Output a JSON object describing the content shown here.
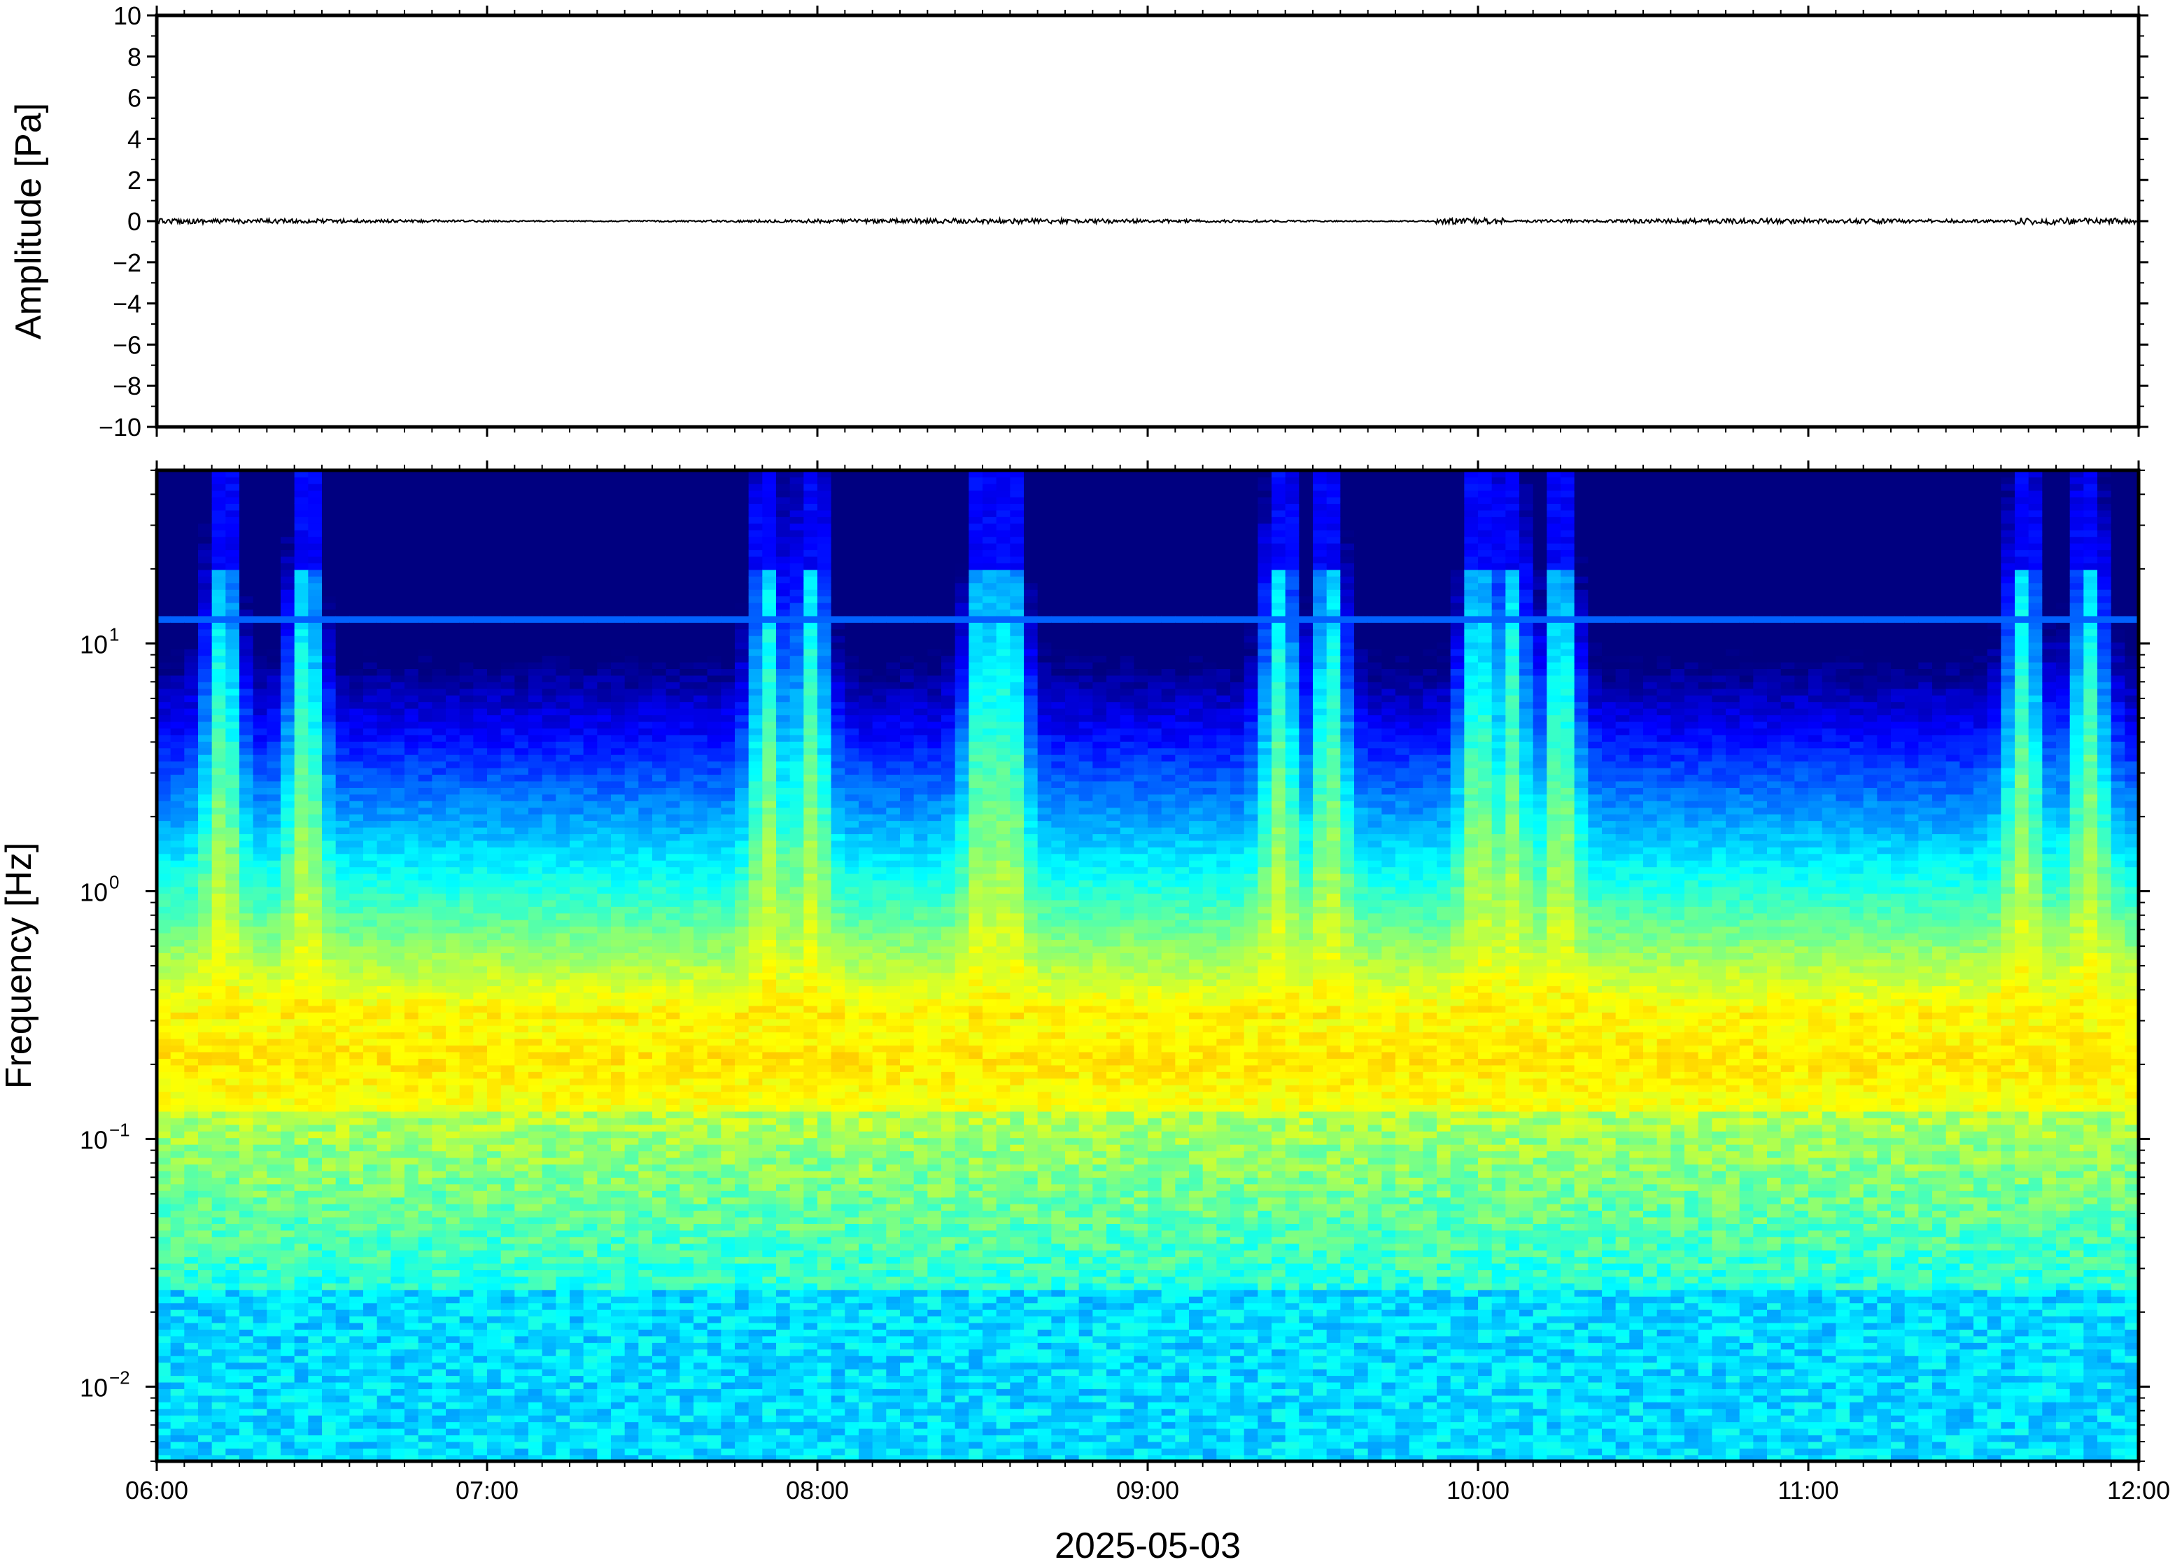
{
  "chart_data": [
    {
      "type": "line",
      "panel": "waveform",
      "ylabel": "Amplitude [Pa]",
      "ylim": [
        -10,
        10
      ],
      "yticks": [
        10,
        8,
        6,
        4,
        2,
        0,
        -2,
        -4,
        -6,
        -8,
        -10
      ],
      "ytick_labels": [
        "10",
        "8",
        "6",
        "4",
        "2",
        "0",
        "−2",
        "−4",
        "−6",
        "−8",
        "−10"
      ],
      "x_range": [
        "06:00",
        "12:00"
      ],
      "series": [
        {
          "baseline": 0,
          "peak_amplitude": 0.3,
          "color": "#000000"
        }
      ],
      "grid": false
    },
    {
      "type": "heatmap",
      "panel": "spectrogram",
      "ylabel": "Frequency [Hz]",
      "yscale": "log",
      "ylim": [
        0.005,
        50
      ],
      "yticks": [
        0.01,
        0.1,
        1,
        10
      ],
      "ytick_labels": [
        {
          "base": "10",
          "exp": "−2"
        },
        {
          "base": "10",
          "exp": "−1"
        },
        {
          "base": "10",
          "exp": "0"
        },
        {
          "base": "10",
          "exp": "1"
        }
      ],
      "x_range": [
        "06:00",
        "12:00"
      ],
      "xticks": [
        "06:00",
        "07:00",
        "08:00",
        "09:00",
        "10:00",
        "11:00",
        "12:00"
      ],
      "xlabel": "2025-05-03",
      "colormap": "jet",
      "features": {
        "peak_band_hz": [
          0.15,
          0.3
        ],
        "persistent_line_hz": 12.5,
        "broadband_bursts_hours": [
          6.2,
          6.45,
          7.85,
          7.98,
          8.5,
          8.58,
          9.4,
          9.55,
          10.0,
          10.1,
          10.25,
          11.65,
          11.85
        ]
      },
      "grid": false
    }
  ],
  "colors": {
    "frame": "#000000",
    "background": "#ffffff",
    "trace": "#000000"
  }
}
